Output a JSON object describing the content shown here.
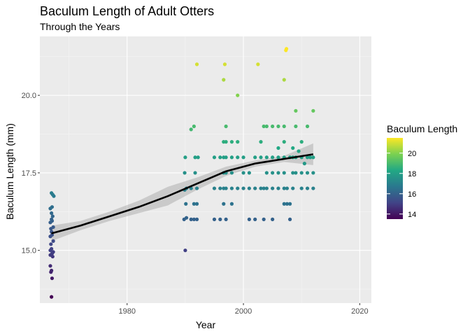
{
  "chart_data": {
    "type": "scatter",
    "title": "Baculum Length of Adult Otters",
    "subtitle": "Through the Years",
    "xlabel": "Year",
    "ylabel": "Baculum Length (mm)",
    "xlim": [
      1965,
      2022
    ],
    "ylim": [
      13.3,
      21.9
    ],
    "x_ticks": [
      1980,
      2000,
      2020
    ],
    "y_ticks": [
      15.0,
      17.5,
      20.0
    ],
    "x_tick_labels": [
      "1980",
      "2000",
      "2020"
    ],
    "y_tick_labels": [
      "15.0",
      "17.5",
      "20.0"
    ],
    "grid": true,
    "legend": {
      "title": "Baculum Length",
      "position": "right",
      "min": 13.5,
      "max": 21.5,
      "ticks": [
        14,
        16,
        18,
        20
      ],
      "tick_labels": [
        "14",
        "16",
        "18",
        "20"
      ],
      "colormap": "viridis"
    },
    "colors": {
      "panel_background": "#ebebeb",
      "grid_major": "#ffffff",
      "smooth_line": "#000000",
      "confidence_band": "#999999"
    },
    "points": [
      {
        "x": 1967.0,
        "y": 13.5
      },
      {
        "x": 1967.1,
        "y": 14.1
      },
      {
        "x": 1966.9,
        "y": 14.3
      },
      {
        "x": 1967.0,
        "y": 14.35
      },
      {
        "x": 1966.8,
        "y": 14.5
      },
      {
        "x": 1967.2,
        "y": 14.8
      },
      {
        "x": 1966.8,
        "y": 14.85
      },
      {
        "x": 1967.1,
        "y": 14.9
      },
      {
        "x": 1966.8,
        "y": 15.0
      },
      {
        "x": 1967.3,
        "y": 14.95
      },
      {
        "x": 1967.0,
        "y": 15.05
      },
      {
        "x": 1966.9,
        "y": 15.2
      },
      {
        "x": 1967.3,
        "y": 15.3
      },
      {
        "x": 1966.8,
        "y": 15.45
      },
      {
        "x": 1967.1,
        "y": 15.5
      },
      {
        "x": 1967.0,
        "y": 15.6
      },
      {
        "x": 1966.9,
        "y": 15.7
      },
      {
        "x": 1967.3,
        "y": 15.75
      },
      {
        "x": 1966.8,
        "y": 15.9
      },
      {
        "x": 1967.1,
        "y": 15.95
      },
      {
        "x": 1967.0,
        "y": 16.0
      },
      {
        "x": 1967.2,
        "y": 16.1
      },
      {
        "x": 1967.0,
        "y": 16.2
      },
      {
        "x": 1966.8,
        "y": 16.35
      },
      {
        "x": 1967.1,
        "y": 16.4
      },
      {
        "x": 1967.0,
        "y": 16.85
      },
      {
        "x": 1967.2,
        "y": 16.8
      },
      {
        "x": 1967.4,
        "y": 16.75
      },
      {
        "x": 1990.0,
        "y": 15.0
      },
      {
        "x": 1989.8,
        "y": 16.0
      },
      {
        "x": 1990.2,
        "y": 16.05
      },
      {
        "x": 1990.1,
        "y": 16.5
      },
      {
        "x": 1989.9,
        "y": 16.95
      },
      {
        "x": 1990.2,
        "y": 17.0
      },
      {
        "x": 1989.9,
        "y": 17.5
      },
      {
        "x": 1990.0,
        "y": 18.0
      },
      {
        "x": 1991.0,
        "y": 16.0
      },
      {
        "x": 1991.0,
        "y": 17.0
      },
      {
        "x": 1991.0,
        "y": 18.9
      },
      {
        "x": 1991.5,
        "y": 19.0
      },
      {
        "x": 1991.5,
        "y": 16.0
      },
      {
        "x": 1991.5,
        "y": 16.5
      },
      {
        "x": 1991.7,
        "y": 17.5
      },
      {
        "x": 1991.7,
        "y": 18.0
      },
      {
        "x": 1992.0,
        "y": 16.0
      },
      {
        "x": 1992.0,
        "y": 16.5
      },
      {
        "x": 1992.0,
        "y": 17.0
      },
      {
        "x": 1992.0,
        "y": 21.0
      },
      {
        "x": 1992.2,
        "y": 18.0
      },
      {
        "x": 1995.0,
        "y": 16.0
      },
      {
        "x": 1995.0,
        "y": 17.0
      },
      {
        "x": 1995.0,
        "y": 18.0
      },
      {
        "x": 1996.0,
        "y": 16.0
      },
      {
        "x": 1996.0,
        "y": 17.0
      },
      {
        "x": 1996.0,
        "y": 18.0
      },
      {
        "x": 1996.6,
        "y": 16.5
      },
      {
        "x": 1996.6,
        "y": 17.0
      },
      {
        "x": 1996.6,
        "y": 17.5
      },
      {
        "x": 1996.6,
        "y": 18.0
      },
      {
        "x": 1996.6,
        "y": 18.5
      },
      {
        "x": 1996.6,
        "y": 20.5
      },
      {
        "x": 1996.8,
        "y": 21.0
      },
      {
        "x": 1997.0,
        "y": 16.0
      },
      {
        "x": 1997.0,
        "y": 17.0
      },
      {
        "x": 1997.0,
        "y": 17.5
      },
      {
        "x": 1997.0,
        "y": 18.0
      },
      {
        "x": 1997.0,
        "y": 18.5
      },
      {
        "x": 1997.0,
        "y": 19.0
      },
      {
        "x": 1998.0,
        "y": 16.5
      },
      {
        "x": 1998.0,
        "y": 17.0
      },
      {
        "x": 1998.0,
        "y": 17.5
      },
      {
        "x": 1998.0,
        "y": 18.0
      },
      {
        "x": 1998.0,
        "y": 18.5
      },
      {
        "x": 1999.0,
        "y": 17.0
      },
      {
        "x": 1999.0,
        "y": 18.0
      },
      {
        "x": 1999.0,
        "y": 18.5
      },
      {
        "x": 1999.0,
        "y": 20.0
      },
      {
        "x": 2000.0,
        "y": 17.0
      },
      {
        "x": 2000.0,
        "y": 17.5
      },
      {
        "x": 2000.0,
        "y": 18.0
      },
      {
        "x": 2001.0,
        "y": 16.0
      },
      {
        "x": 2001.0,
        "y": 17.0
      },
      {
        "x": 2001.0,
        "y": 17.5
      },
      {
        "x": 2002.0,
        "y": 16.0
      },
      {
        "x": 2002.0,
        "y": 17.0
      },
      {
        "x": 2002.0,
        "y": 18.0
      },
      {
        "x": 2002.5,
        "y": 21.0
      },
      {
        "x": 2003.0,
        "y": 17.0
      },
      {
        "x": 2003.0,
        "y": 18.0
      },
      {
        "x": 2003.0,
        "y": 18.5
      },
      {
        "x": 2003.5,
        "y": 16.0
      },
      {
        "x": 2003.5,
        "y": 17.0
      },
      {
        "x": 2003.5,
        "y": 19.0
      },
      {
        "x": 2004.0,
        "y": 17.0
      },
      {
        "x": 2004.0,
        "y": 17.5
      },
      {
        "x": 2004.0,
        "y": 18.0
      },
      {
        "x": 2004.0,
        "y": 19.0
      },
      {
        "x": 2005.0,
        "y": 16.0
      },
      {
        "x": 2005.0,
        "y": 17.0
      },
      {
        "x": 2005.0,
        "y": 17.5
      },
      {
        "x": 2005.0,
        "y": 18.0
      },
      {
        "x": 2005.0,
        "y": 19.0
      },
      {
        "x": 2006.0,
        "y": 17.0
      },
      {
        "x": 2006.0,
        "y": 17.5
      },
      {
        "x": 2006.0,
        "y": 18.0
      },
      {
        "x": 2006.0,
        "y": 18.3
      },
      {
        "x": 2006.0,
        "y": 19.0
      },
      {
        "x": 2007.0,
        "y": 16.5
      },
      {
        "x": 2007.0,
        "y": 17.0
      },
      {
        "x": 2007.0,
        "y": 17.5
      },
      {
        "x": 2007.0,
        "y": 18.0
      },
      {
        "x": 2007.0,
        "y": 18.5
      },
      {
        "x": 2007.0,
        "y": 20.5
      },
      {
        "x": 2007.0,
        "y": 19.0
      },
      {
        "x": 2007.3,
        "y": 21.45
      },
      {
        "x": 2007.4,
        "y": 21.5
      },
      {
        "x": 2007.5,
        "y": 16.5
      },
      {
        "x": 2008.0,
        "y": 16.5
      },
      {
        "x": 2008.0,
        "y": 16.0
      },
      {
        "x": 2008.0,
        "y": 18.0
      },
      {
        "x": 2008.5,
        "y": 17.0
      },
      {
        "x": 2008.5,
        "y": 17.5
      },
      {
        "x": 2008.5,
        "y": 18.0
      },
      {
        "x": 2008.5,
        "y": 18.3
      },
      {
        "x": 2009.0,
        "y": 17.5
      },
      {
        "x": 2009.0,
        "y": 18.0
      },
      {
        "x": 2009.0,
        "y": 19.5
      },
      {
        "x": 2009.0,
        "y": 19.0
      },
      {
        "x": 2010.0,
        "y": 17.0
      },
      {
        "x": 2010.0,
        "y": 17.5
      },
      {
        "x": 2010.0,
        "y": 18.0
      },
      {
        "x": 2010.0,
        "y": 18.5
      },
      {
        "x": 2011.0,
        "y": 17.0
      },
      {
        "x": 2011.0,
        "y": 17.5
      },
      {
        "x": 2011.0,
        "y": 18.0
      },
      {
        "x": 2011.0,
        "y": 19.0
      },
      {
        "x": 2012.0,
        "y": 17.0
      },
      {
        "x": 2012.0,
        "y": 17.5
      },
      {
        "x": 2012.0,
        "y": 18.0
      },
      {
        "x": 2012.0,
        "y": 19.5
      },
      {
        "x": 2007.5,
        "y": 17.0
      },
      {
        "x": 2009.5,
        "y": 18.2
      },
      {
        "x": 2010.5,
        "y": 17.8
      },
      {
        "x": 2011.5,
        "y": 18.0
      }
    ],
    "smooth": {
      "x": [
        1967,
        1972,
        1977,
        1982,
        1987,
        1992,
        1997,
        2002,
        2007,
        2012
      ],
      "y": [
        15.55,
        15.8,
        16.1,
        16.4,
        16.75,
        17.15,
        17.55,
        17.8,
        17.95,
        18.1
      ],
      "lower": [
        15.3,
        15.65,
        15.95,
        16.2,
        16.45,
        16.95,
        17.4,
        17.7,
        17.85,
        17.75
      ],
      "upper": [
        15.8,
        15.95,
        16.25,
        16.6,
        17.05,
        17.35,
        17.7,
        17.9,
        18.05,
        18.45
      ]
    }
  }
}
